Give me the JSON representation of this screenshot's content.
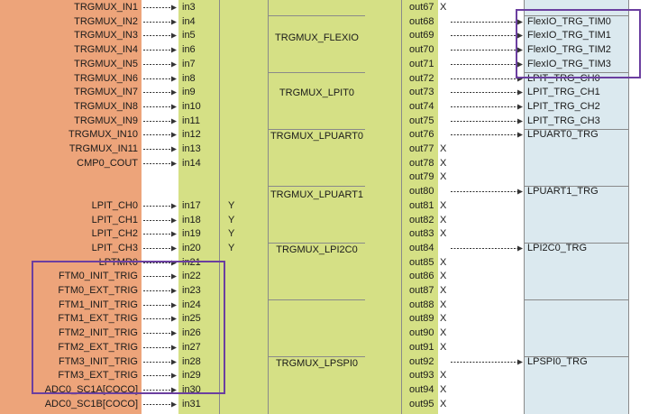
{
  "inputs": [
    {
      "name": "TRGMUX_IN1",
      "pin": "in3",
      "y": ""
    },
    {
      "name": "TRGMUX_IN2",
      "pin": "in4",
      "y": ""
    },
    {
      "name": "TRGMUX_IN3",
      "pin": "in5",
      "y": ""
    },
    {
      "name": "TRGMUX_IN4",
      "pin": "in6",
      "y": ""
    },
    {
      "name": "TRGMUX_IN5",
      "pin": "in7",
      "y": ""
    },
    {
      "name": "TRGMUX_IN6",
      "pin": "in8",
      "y": ""
    },
    {
      "name": "TRGMUX_IN7",
      "pin": "in9",
      "y": ""
    },
    {
      "name": "TRGMUX_IN8",
      "pin": "in10",
      "y": ""
    },
    {
      "name": "TRGMUX_IN9",
      "pin": "in11",
      "y": ""
    },
    {
      "name": "TRGMUX_IN10",
      "pin": "in12",
      "y": ""
    },
    {
      "name": "TRGMUX_IN11",
      "pin": "in13",
      "y": ""
    },
    {
      "name": "CMP0_COUT",
      "pin": "in14",
      "y": ""
    },
    {
      "name": "",
      "pin": "",
      "y": ""
    },
    {
      "name": "",
      "pin": "",
      "y": ""
    },
    {
      "name": "LPIT_CH0",
      "pin": "in17",
      "y": "Y"
    },
    {
      "name": "LPIT_CH1",
      "pin": "in18",
      "y": "Y"
    },
    {
      "name": "LPIT_CH2",
      "pin": "in19",
      "y": "Y"
    },
    {
      "name": "LPIT_CH3",
      "pin": "in20",
      "y": "Y"
    },
    {
      "name": "LPTMR0",
      "pin": "in21",
      "y": ""
    },
    {
      "name": "FTM0_INIT_TRIG",
      "pin": "in22",
      "y": ""
    },
    {
      "name": "FTM0_EXT_TRIG",
      "pin": "in23",
      "y": ""
    },
    {
      "name": "FTM1_INIT_TRIG",
      "pin": "in24",
      "y": ""
    },
    {
      "name": "FTM1_EXT_TRIG",
      "pin": "in25",
      "y": ""
    },
    {
      "name": "FTM2_INIT_TRIG",
      "pin": "in26",
      "y": ""
    },
    {
      "name": "FTM2_EXT_TRIG",
      "pin": "in27",
      "y": ""
    },
    {
      "name": "FTM3_INIT_TRIG",
      "pin": "in28",
      "y": ""
    },
    {
      "name": "FTM3_EXT_TRIG",
      "pin": "in29",
      "y": ""
    },
    {
      "name": "ADC0_SC1A[COCO]",
      "pin": "in30",
      "y": ""
    },
    {
      "name": "ADC0_SC1B[COCO]",
      "pin": "in31",
      "y": ""
    }
  ],
  "outputs": [
    {
      "pin": "out67",
      "x": "X",
      "dest": ""
    },
    {
      "pin": "out68",
      "x": "",
      "dest": "FlexIO_TRG_TIM0"
    },
    {
      "pin": "out69",
      "x": "",
      "dest": "FlexIO_TRG_TIM1"
    },
    {
      "pin": "out70",
      "x": "",
      "dest": "FlexIO_TRG_TIM2"
    },
    {
      "pin": "out71",
      "x": "",
      "dest": "FlexIO_TRG_TIM3"
    },
    {
      "pin": "out72",
      "x": "",
      "dest": "LPIT_TRG_CH0"
    },
    {
      "pin": "out73",
      "x": "",
      "dest": "LPIT_TRG_CH1"
    },
    {
      "pin": "out74",
      "x": "",
      "dest": "LPIT_TRG_CH2"
    },
    {
      "pin": "out75",
      "x": "",
      "dest": "LPIT_TRG_CH3"
    },
    {
      "pin": "out76",
      "x": "",
      "dest": "LPUART0_TRG"
    },
    {
      "pin": "out77",
      "x": "X",
      "dest": ""
    },
    {
      "pin": "out78",
      "x": "X",
      "dest": ""
    },
    {
      "pin": "out79",
      "x": "X",
      "dest": ""
    },
    {
      "pin": "out80",
      "x": "",
      "dest": "LPUART1_TRG"
    },
    {
      "pin": "out81",
      "x": "X",
      "dest": ""
    },
    {
      "pin": "out82",
      "x": "X",
      "dest": ""
    },
    {
      "pin": "out83",
      "x": "X",
      "dest": ""
    },
    {
      "pin": "out84",
      "x": "",
      "dest": "LPI2C0_TRG"
    },
    {
      "pin": "out85",
      "x": "X",
      "dest": ""
    },
    {
      "pin": "out86",
      "x": "X",
      "dest": ""
    },
    {
      "pin": "out87",
      "x": "X",
      "dest": ""
    },
    {
      "pin": "out88",
      "x": "X",
      "dest": ""
    },
    {
      "pin": "out89",
      "x": "X",
      "dest": ""
    },
    {
      "pin": "out90",
      "x": "X",
      "dest": ""
    },
    {
      "pin": "out91",
      "x": "X",
      "dest": ""
    },
    {
      "pin": "out92",
      "x": "",
      "dest": "LPSPI0_TRG"
    },
    {
      "pin": "out93",
      "x": "X",
      "dest": ""
    },
    {
      "pin": "out94",
      "x": "X",
      "dest": ""
    },
    {
      "pin": "out95",
      "x": "X",
      "dest": ""
    }
  ],
  "modules": {
    "flexio": "TRGMUX_FLEXIO",
    "lpit": "TRGMUX_LPIT0",
    "lpuart0": "TRGMUX_LPUART0",
    "lpuart1": "TRGMUX_LPUART1",
    "lpi2c0": "TRGMUX_LPI2C0",
    "lpspi0": "TRGMUX_LPSPI0"
  },
  "colors": {
    "source_bg": "#eda47a",
    "mux_bg": "#d5e085",
    "dest_bg": "#dbe9ef",
    "highlight": "#6b3fa0"
  }
}
